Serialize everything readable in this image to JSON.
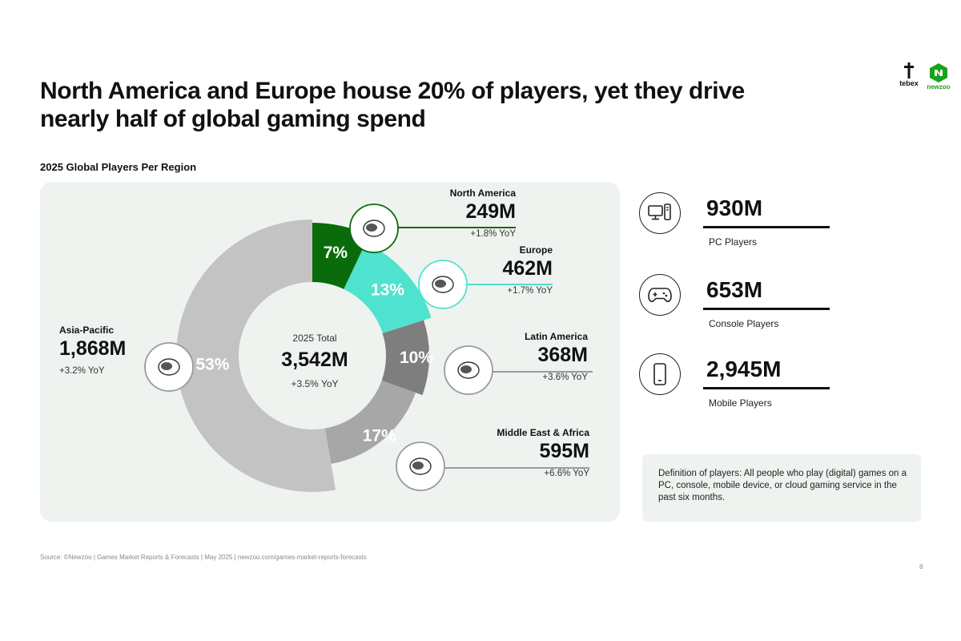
{
  "title_lines": [
    "North America and Europe house 20% of players, yet they drive",
    "nearly half of global gaming spend"
  ],
  "logos": {
    "tebex": "tebex",
    "newzoo": "newzoo",
    "brand_green": "#19a319"
  },
  "chart_data": {
    "type": "pie",
    "variant": "donut",
    "title": "2025 Global Players Per Region",
    "center": {
      "label": "2025 Total",
      "value": "3,542M",
      "yoy": "+3.5% YoY"
    },
    "unit": "M",
    "slices": [
      {
        "name": "North America",
        "value": 249,
        "value_label": "249M",
        "percent_label": "7%",
        "yoy": "+1.8% YoY",
        "color": "#0a6b0a",
        "icon": "north-america-map-icon"
      },
      {
        "name": "Europe",
        "value": 462,
        "value_label": "462M",
        "percent_label": "13%",
        "yoy": "+1.7% YoY",
        "color": "#4fe3cf",
        "icon": "europe-map-icon"
      },
      {
        "name": "Latin America",
        "value": 368,
        "value_label": "368M",
        "percent_label": "10%",
        "yoy": "+3.6% YoY",
        "color": "#7e7e7e",
        "icon": "latin-america-map-icon"
      },
      {
        "name": "Middle East & Africa",
        "value": 595,
        "value_label": "595M",
        "percent_label": "17%",
        "yoy": "+6.6% YoY",
        "color": "#a7a7a7",
        "icon": "africa-map-icon"
      },
      {
        "name": "Asia-Pacific",
        "value": 1868,
        "value_label": "1,868M",
        "percent_label": "53%",
        "yoy": "+3.2% YoY",
        "color": "#c3c3c3",
        "icon": "asia-pacific-map-icon"
      }
    ]
  },
  "players": [
    {
      "value": "930M",
      "label": "PC Players",
      "icon": "pc-icon"
    },
    {
      "value": "653M",
      "label": "Console Players",
      "icon": "gamepad-icon"
    },
    {
      "value": "2,945M",
      "label": "Mobile Players",
      "icon": "mobile-phone-icon"
    }
  ],
  "definition": "Definition of players: All people who play (digital) games on a PC, console, mobile device, or cloud gaming service in the past six months.",
  "source": "Source: ©Newzoo | Games Market Reports & Forecasts | May 2025 | newzoo.com/games-market-reports-forecasts",
  "page_number": "8"
}
